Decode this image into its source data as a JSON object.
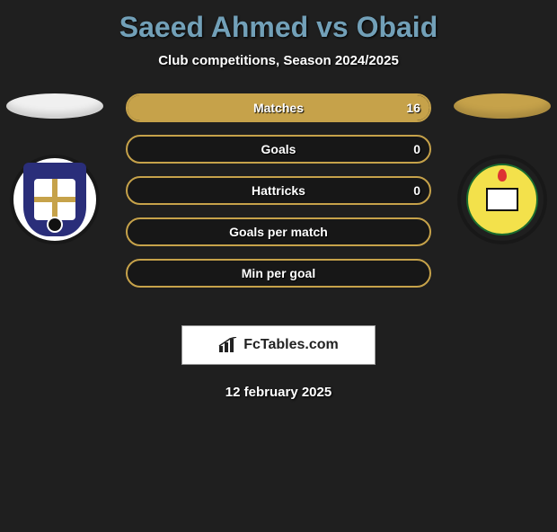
{
  "title": {
    "text": "Saeed Ahmed vs Obaid",
    "color": "#72a0b8"
  },
  "subtitle": "Club competitions, Season 2024/2025",
  "left": {
    "color": "#f0f0f0",
    "badge_bg": "#ffffff",
    "shield_color": "#2a2e7a",
    "accent": "#c6a24a"
  },
  "right": {
    "color": "#c6a24a",
    "badge_bg": "#1f1f1f",
    "ring_color": "#f3e14b",
    "ring_border": "#1a6b2f"
  },
  "stats_border_color": "#c6a24a",
  "rows": [
    {
      "label": "Matches",
      "left": "",
      "right": "16",
      "left_pct": 0,
      "right_pct": 100,
      "right_fill": "#c6a24a"
    },
    {
      "label": "Goals",
      "left": "",
      "right": "0",
      "left_pct": 0,
      "right_pct": 0
    },
    {
      "label": "Hattricks",
      "left": "",
      "right": "0",
      "left_pct": 0,
      "right_pct": 0
    },
    {
      "label": "Goals per match",
      "left": "",
      "right": "",
      "left_pct": 0,
      "right_pct": 0
    },
    {
      "label": "Min per goal",
      "left": "",
      "right": "",
      "left_pct": 0,
      "right_pct": 0
    }
  ],
  "brand": "FcTables.com",
  "date": "12 february 2025",
  "background": "#1f1f1f"
}
